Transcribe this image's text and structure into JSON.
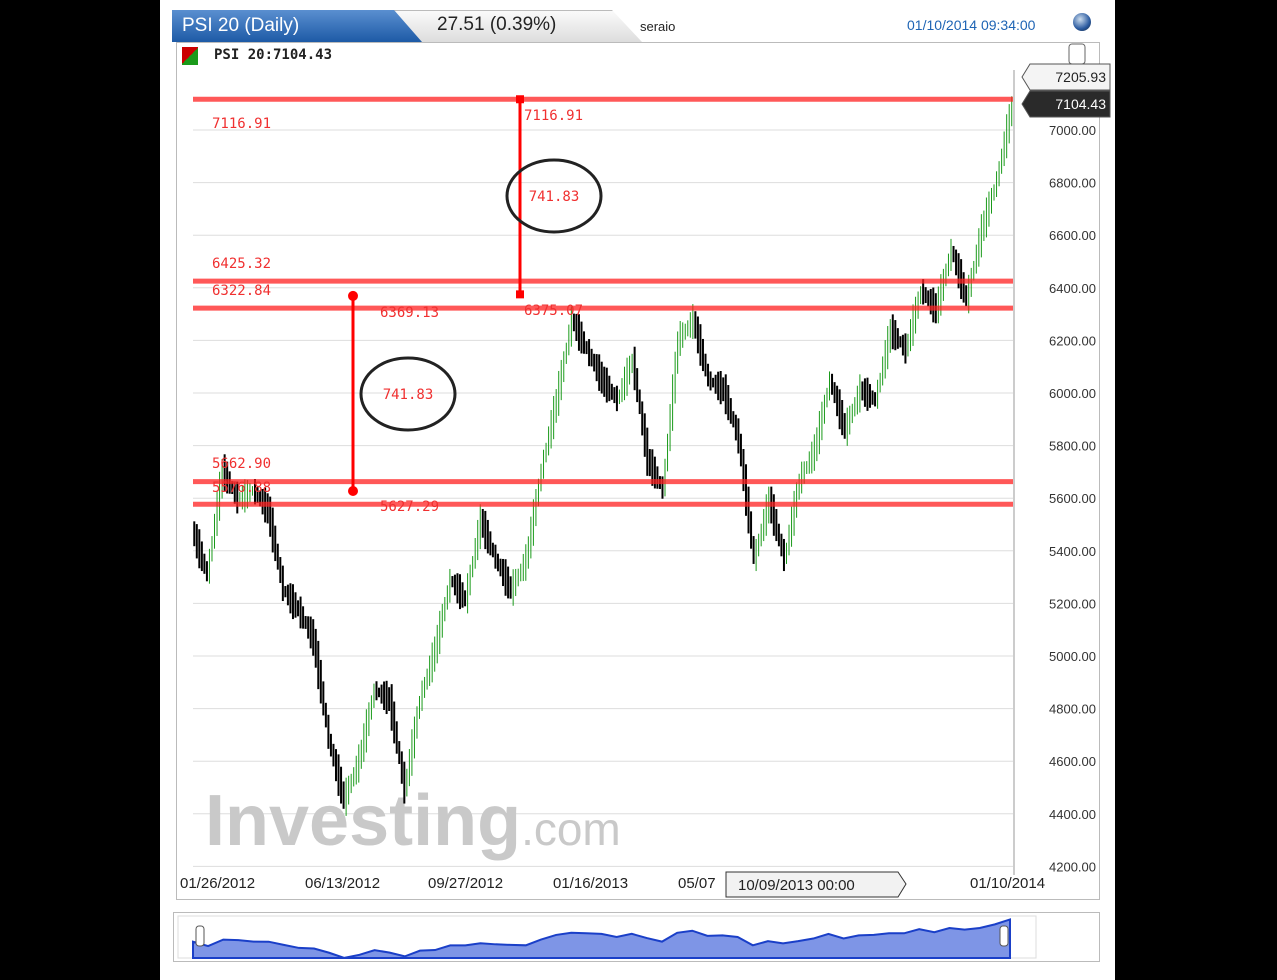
{
  "header": {
    "tab_title": "PSI 20 (Daily)",
    "change": "27.51 (0.39%)",
    "user": "seraio",
    "datetime": "01/10/2014 09:34:00"
  },
  "legend": {
    "label": "PSI 20:7104.43"
  },
  "watermark": "Investing.com",
  "crosshair_date": "10/09/2013 00:00",
  "colors": {
    "up": "#1a9a1a",
    "down": "#000000",
    "annotation": "#ff2020",
    "header": "#1d5aa6",
    "navigator": "#1a3fc8"
  },
  "chart_data": {
    "type": "line",
    "ylim": [
      4200,
      7200
    ],
    "yticks": [
      "7000.00",
      "6800.00",
      "6600.00",
      "6400.00",
      "6200.00",
      "6000.00",
      "5800.00",
      "5600.00",
      "5400.00",
      "5200.00",
      "5000.00",
      "4800.00",
      "4600.00",
      "4400.00",
      "4200.00"
    ],
    "xticks": [
      "01/26/2012",
      "06/13/2012",
      "09/27/2012",
      "01/16/2013",
      "05/07",
      "",
      "01/10/2014"
    ],
    "grid": true,
    "price_labels": {
      "high": "7205.93",
      "last": "7104.43"
    },
    "values": [
      5479,
      5308,
      5707,
      5593,
      5631,
      5555,
      5251,
      5175,
      5061,
      4680,
      4452,
      4604,
      4871,
      4833,
      4490,
      4833,
      5023,
      5289,
      5213,
      5517,
      5365,
      5251,
      5365,
      5707,
      5973,
      6278,
      6163,
      6049,
      5973,
      6125,
      5745,
      5631,
      6201,
      6278,
      6049,
      6011,
      5821,
      5365,
      5593,
      5365,
      5669,
      5783,
      6049,
      5859,
      6011,
      5973,
      6239,
      6163,
      6391,
      6316,
      6544,
      6354,
      6620,
      6810,
      7095
    ],
    "hlines": [
      {
        "value": 7116.91,
        "label": "7116.91"
      },
      {
        "value": 6425.32,
        "label": "6425.32"
      },
      {
        "value": 6322.84,
        "label": "6322.84"
      },
      {
        "value": 5662.9,
        "label": "5662.90"
      },
      {
        "value": 5576.88,
        "label": "5576.88"
      }
    ],
    "measures": [
      {
        "from": 6375.07,
        "to": 7116.91,
        "top_label": "7116.91",
        "bottom_label": "6375.07",
        "diff": "741.83"
      },
      {
        "from": 5627.29,
        "to": 6369.13,
        "top_label": "6369.13",
        "bottom_label": "5627.29",
        "diff": "741.83"
      }
    ]
  }
}
